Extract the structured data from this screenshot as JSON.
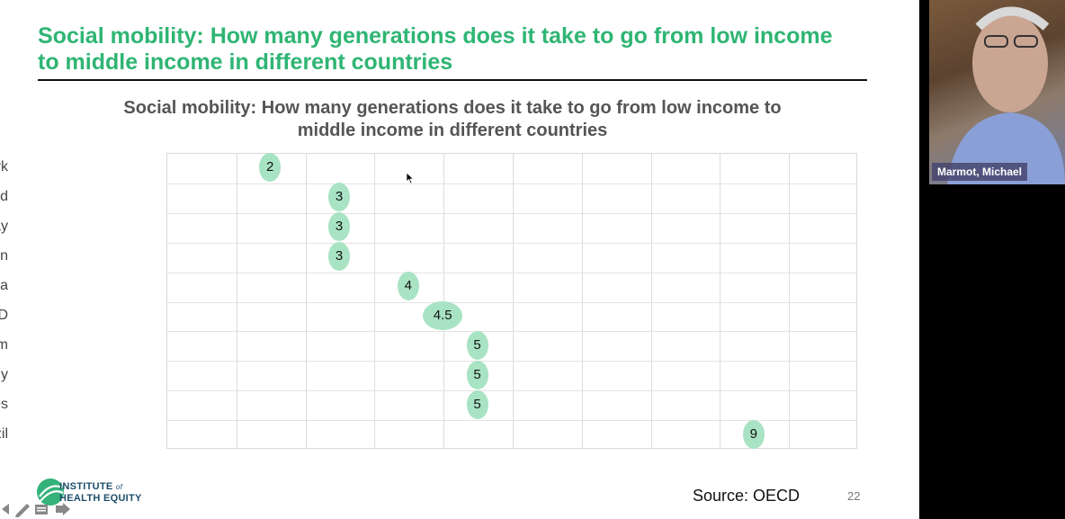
{
  "slide": {
    "title": "Social mobility: How many generations does it take to go from low income to middle income in different countries",
    "source": "Source: OECD",
    "page_number": "22",
    "logo": {
      "line1": "INSTITUTE",
      "of": "of",
      "line2": "HEALTH EQUITY"
    }
  },
  "video": {
    "participant_name": "Marmot, Michael"
  },
  "colors": {
    "title_green": "#2fb573",
    "bubble_green": "#a8e3c3",
    "logo_navy": "#1d4e6b"
  },
  "chart_data": {
    "type": "scatter",
    "title": "Social mobility: How many generations does it take to go from low income to middle income in different countries",
    "categories": [
      "Denmark",
      "Finland",
      "Norway",
      "Sweden",
      "Australia",
      "OECD",
      "United Kingdom",
      "Italy",
      "United States",
      "Brazil"
    ],
    "values": [
      2,
      3,
      3,
      3,
      4,
      4.5,
      5,
      5,
      5,
      9
    ],
    "data_labels": [
      "2",
      "3",
      "3",
      "3",
      "4",
      "4.5",
      "5",
      "5",
      "5",
      "9"
    ],
    "xlim": [
      0.5,
      10.5
    ],
    "grid": true,
    "xlabel": "",
    "ylabel": ""
  }
}
